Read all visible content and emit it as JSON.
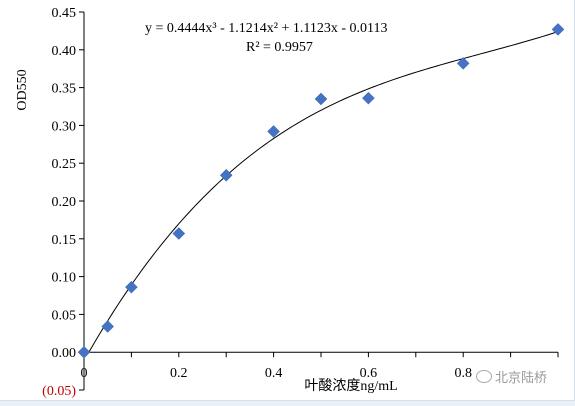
{
  "chart_data": {
    "type": "scatter",
    "title": "",
    "xlabel": "叶酸浓度ng/mL",
    "ylabel": "OD550",
    "xlim": [
      0,
      1.0
    ],
    "ylim": [
      -0.05,
      0.45
    ],
    "x_ticks": [
      "0",
      "0.2",
      "0.4",
      "0.6",
      "0.8"
    ],
    "y_ticks": [
      "0.45",
      "0.40",
      "0.35",
      "0.30",
      "0.25",
      "0.20",
      "0.15",
      "0.10",
      "0.05",
      "0.00",
      "(0.05)"
    ],
    "y_tick_values": [
      0.45,
      0.4,
      0.35,
      0.3,
      0.25,
      0.2,
      0.15,
      0.1,
      0.05,
      0.0,
      -0.05
    ],
    "x_tick_values": [
      0,
      0.2,
      0.4,
      0.6,
      0.8
    ],
    "grid": false,
    "series": [
      {
        "marker": "diamond",
        "color": "#4472c4",
        "x": [
          0,
          0.05,
          0.1,
          0.2,
          0.3,
          0.4,
          0.5,
          0.6,
          0.8,
          1.0
        ],
        "y": [
          0.0,
          0.034,
          0.086,
          0.157,
          0.234,
          0.292,
          0.335,
          0.336,
          0.382,
          0.427
        ]
      }
    ],
    "trendline": {
      "type": "polynomial",
      "coefficients": [
        0.4444,
        -1.1214,
        1.1123,
        -0.0113
      ],
      "color": "#000000"
    },
    "annotations": {
      "equation": "y = 0.4444x³ - 1.1214x² + 1.1123x - 0.0113",
      "r_squared": "R² = 0.9957"
    }
  },
  "watermark": {
    "text": "北京陆桥",
    "icon": "wechat-icon"
  }
}
